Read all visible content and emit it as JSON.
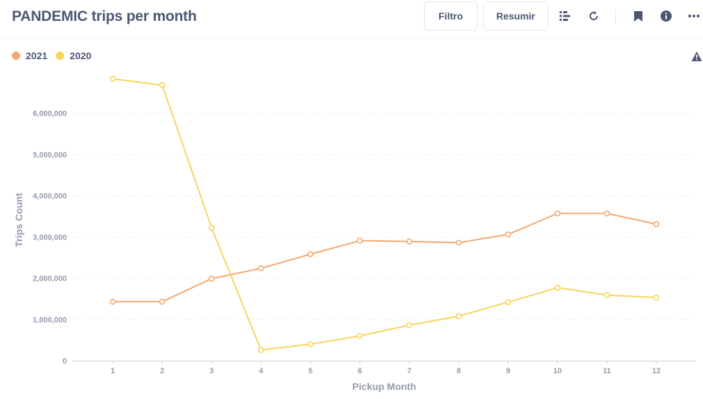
{
  "header": {
    "title": "PANDEMIC trips per month",
    "filter_label": "Filtro",
    "summarize_label": "Resumir",
    "icons": [
      "list-icon",
      "refresh-icon",
      "bookmark-icon",
      "info-icon",
      "more-icon"
    ]
  },
  "legend": [
    {
      "name": "2021",
      "color": "#f2a86f"
    },
    {
      "name": "2020",
      "color": "#f9d45c"
    }
  ],
  "colors": {
    "text": "#4c5773",
    "axis": "#949aab",
    "grid": "#eceef2",
    "warning": "#4c5773"
  },
  "chart_data": {
    "type": "line",
    "xlabel": "Pickup Month",
    "ylabel": "Trips Count",
    "x": [
      "1",
      "2",
      "3",
      "4",
      "5",
      "6",
      "7",
      "8",
      "9",
      "10",
      "11",
      "12"
    ],
    "yticks": [
      "0",
      "1,000,000",
      "2,000,000",
      "3,000,000",
      "4,000,000",
      "5,000,000",
      "6,000,000"
    ],
    "ylim": [
      0,
      7000000
    ],
    "grid": true,
    "legend_position": "top-left",
    "series": [
      {
        "name": "2021",
        "color": "#f2a86f",
        "values": [
          1430000,
          1430000,
          1990000,
          2240000,
          2580000,
          2910000,
          2890000,
          2860000,
          3060000,
          3570000,
          3570000,
          3310000
        ]
      },
      {
        "name": "2020",
        "color": "#f9d45c",
        "values": [
          6830000,
          6680000,
          3220000,
          260000,
          400000,
          600000,
          860000,
          1080000,
          1420000,
          1770000,
          1590000,
          1530000
        ]
      }
    ]
  }
}
